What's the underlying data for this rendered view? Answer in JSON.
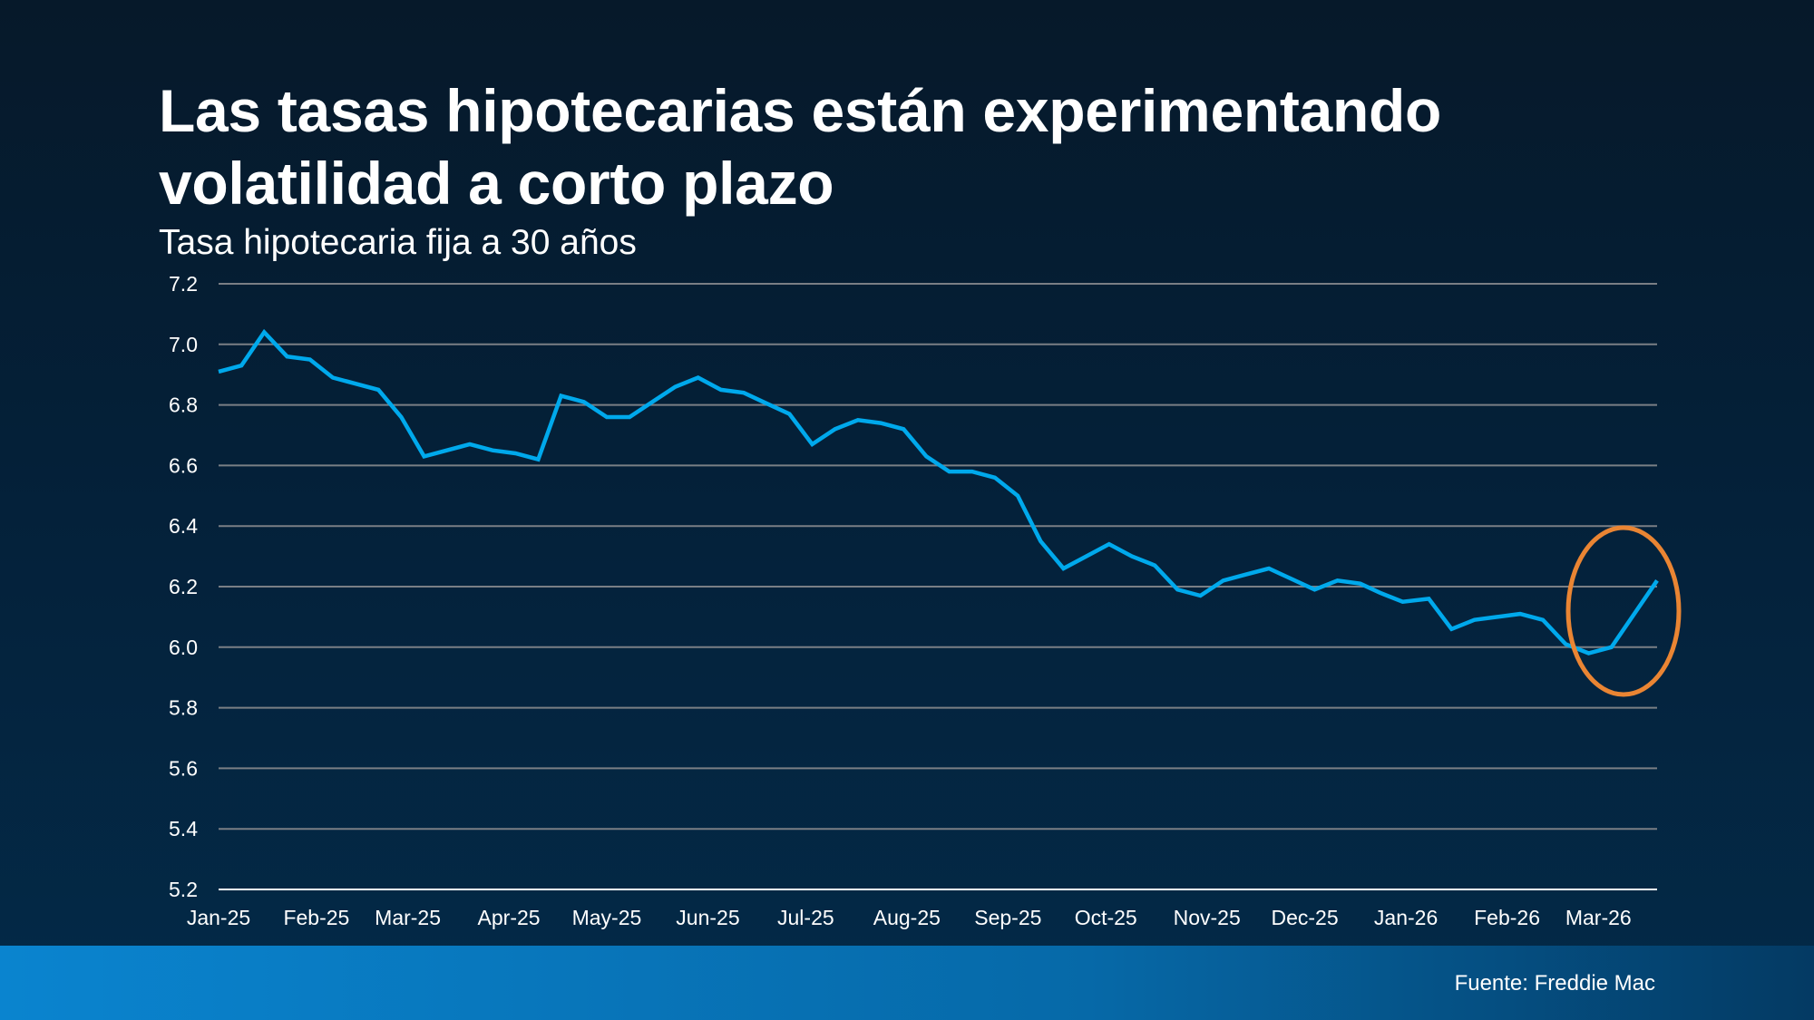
{
  "title": "Las tasas hipotecarias están experimentando volatilidad a corto plazo",
  "footer": {
    "source": "Fuente: Freddie Mac"
  },
  "colors": {
    "line": "#00a9ec",
    "highlight": "#ea8533",
    "grid": "#7a7f85",
    "background": "#04213a",
    "footer": "#0a84cf"
  },
  "chart_data": {
    "type": "line",
    "title": "Las tasas hipotecarias están experimentando volatilidad a corto plazo",
    "subtitle": "Tasa hipotecaria fija a 30 años",
    "xlabel": "",
    "ylabel": "",
    "ylim": [
      5.2,
      7.2
    ],
    "yticks": [
      "7.2",
      "7.0",
      "6.8",
      "6.6",
      "6.4",
      "6.2",
      "6.0",
      "5.8",
      "5.6",
      "5.4",
      "5.2"
    ],
    "xtick_labels": [
      {
        "label": "Jan-25",
        "date": "2025-01-01"
      },
      {
        "label": "Feb-25",
        "date": "2025-02-01"
      },
      {
        "label": "Mar-25",
        "date": "2025-03-01"
      },
      {
        "label": "Apr-25",
        "date": "2025-04-01"
      },
      {
        "label": "May-25",
        "date": "2025-05-01"
      },
      {
        "label": "Jun-25",
        "date": "2025-06-01"
      },
      {
        "label": "Jul-25",
        "date": "2025-07-01"
      },
      {
        "label": "Aug-25",
        "date": "2025-08-01"
      },
      {
        "label": "Sep-25",
        "date": "2025-09-01"
      },
      {
        "label": "Oct-25",
        "date": "2025-10-01"
      },
      {
        "label": "Nov-25",
        "date": "2025-11-01"
      },
      {
        "label": "Dec-25",
        "date": "2025-12-01"
      },
      {
        "label": "Jan-26",
        "date": "2026-01-01"
      },
      {
        "label": "Feb-26",
        "date": "2026-02-01"
      },
      {
        "label": "Mar-26",
        "date": "2026-03-01"
      }
    ],
    "grid": true,
    "annotation": "orange circle highlighting the latest rise",
    "x": [
      "2025-01-02",
      "2025-01-09",
      "2025-01-16",
      "2025-01-23",
      "2025-01-30",
      "2025-02-06",
      "2025-02-13",
      "2025-02-20",
      "2025-02-27",
      "2025-03-06",
      "2025-03-13",
      "2025-03-20",
      "2025-03-27",
      "2025-04-03",
      "2025-04-10",
      "2025-04-17",
      "2025-04-24",
      "2025-05-01",
      "2025-05-08",
      "2025-05-15",
      "2025-05-22",
      "2025-05-29",
      "2025-06-05",
      "2025-06-12",
      "2025-06-18",
      "2025-06-26",
      "2025-07-03",
      "2025-07-10",
      "2025-07-17",
      "2025-07-24",
      "2025-07-31",
      "2025-08-07",
      "2025-08-14",
      "2025-08-21",
      "2025-08-28",
      "2025-09-04",
      "2025-09-11",
      "2025-09-18",
      "2025-09-25",
      "2025-10-02",
      "2025-10-09",
      "2025-10-16",
      "2025-10-23",
      "2025-10-30",
      "2025-11-06",
      "2025-11-13",
      "2025-11-20",
      "2025-11-26",
      "2025-12-04",
      "2025-12-11",
      "2025-12-18",
      "2025-12-24",
      "2025-12-31",
      "2026-01-08",
      "2026-01-15",
      "2026-01-22",
      "2026-01-29",
      "2026-02-05",
      "2026-02-12",
      "2026-02-19",
      "2026-02-26",
      "2026-03-05",
      "2026-03-12",
      "2026-03-19"
    ],
    "series": [
      {
        "values": [
          6.91,
          6.93,
          7.04,
          6.96,
          6.95,
          6.89,
          6.87,
          6.85,
          6.76,
          6.63,
          6.65,
          6.67,
          6.65,
          6.64,
          6.62,
          6.83,
          6.81,
          6.76,
          6.76,
          6.81,
          6.86,
          6.89,
          6.85,
          6.84,
          6.81,
          6.77,
          6.67,
          6.72,
          6.75,
          6.74,
          6.72,
          6.63,
          6.58,
          6.58,
          6.56,
          6.5,
          6.35,
          6.26,
          6.3,
          6.34,
          6.3,
          6.27,
          6.19,
          6.17,
          6.22,
          6.24,
          6.26,
          6.23,
          6.19,
          6.22,
          6.21,
          6.18,
          6.15,
          6.16,
          6.06,
          6.09,
          6.1,
          6.11,
          6.09,
          6.01,
          5.98,
          6.0,
          6.11,
          6.22
        ]
      }
    ]
  }
}
